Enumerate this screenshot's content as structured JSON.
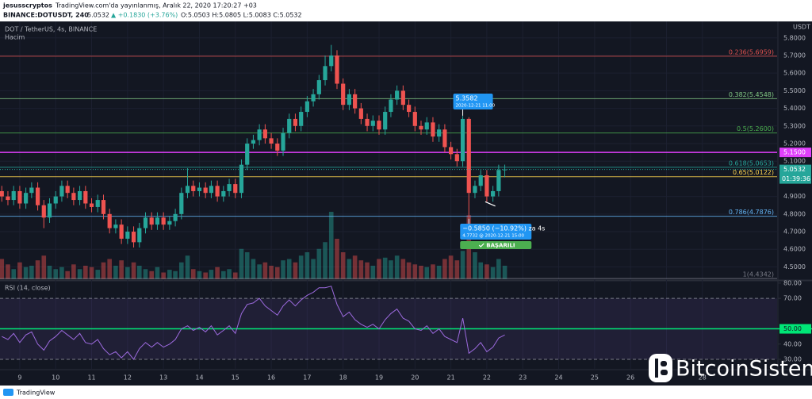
{
  "header": {
    "user": "jesusscryptos",
    "published": "TradingView.com'da yayınlanmış, Aralık 22, 2020 17:20:27 +03",
    "symbol": "BINANCE:DOTUSDT, 240",
    "price": "5.0532",
    "change": "▲ +0.1830 (+3.76%)",
    "ohlc": "O:5.0503 H:5.0805 L:5.0083 C:5.0532"
  },
  "footer": {
    "brand": "TradingView",
    "watermark": "BitcoinSistemi"
  },
  "chart_data": [
    {
      "type": "candlestick",
      "title": "DOT / TetherUS, 4s, BINANCE",
      "subtitle": "Hacim",
      "y_axis_label": "USDT",
      "up_color": "#26a69a",
      "down_color": "#ef5350",
      "x": [
        8.5,
        8.67,
        8.83,
        9,
        9.17,
        9.33,
        9.5,
        9.67,
        9.83,
        10,
        10.17,
        10.33,
        10.5,
        10.67,
        10.83,
        11,
        11.17,
        11.33,
        11.5,
        11.67,
        11.83,
        12,
        12.17,
        12.33,
        12.5,
        12.67,
        12.83,
        13,
        13.17,
        13.33,
        13.5,
        13.67,
        13.83,
        14,
        14.17,
        14.33,
        14.5,
        14.67,
        14.83,
        15,
        15.17,
        15.33,
        15.5,
        15.67,
        15.83,
        16,
        16.17,
        16.33,
        16.5,
        16.67,
        16.83,
        17,
        17.17,
        17.33,
        17.5,
        17.67,
        17.83,
        18,
        18.17,
        18.33,
        18.5,
        18.67,
        18.83,
        19,
        19.17,
        19.33,
        19.5,
        19.67,
        19.83,
        20,
        20.17,
        20.33,
        20.5,
        20.67,
        20.83,
        21,
        21.17,
        21.33,
        21.5,
        21.67,
        21.83,
        22,
        22.17,
        22.33,
        22.5
      ],
      "open": [
        4.93,
        4.9,
        4.88,
        4.93,
        4.86,
        4.92,
        4.95,
        4.85,
        4.78,
        4.86,
        4.9,
        4.96,
        4.92,
        4.88,
        4.93,
        4.86,
        4.84,
        4.88,
        4.8,
        4.72,
        4.74,
        4.66,
        4.7,
        4.64,
        4.72,
        4.78,
        4.74,
        4.78,
        4.74,
        4.76,
        4.8,
        4.92,
        4.96,
        4.93,
        4.95,
        4.92,
        4.96,
        4.9,
        4.93,
        4.97,
        4.92,
        5.08,
        5.2,
        5.22,
        5.28,
        5.23,
        5.2,
        5.16,
        5.26,
        5.34,
        5.3,
        5.38,
        5.44,
        5.48,
        5.56,
        5.64,
        5.7,
        5.54,
        5.42,
        5.48,
        5.4,
        5.34,
        5.3,
        5.33,
        5.28,
        5.38,
        5.45,
        5.5,
        5.42,
        5.38,
        5.3,
        5.28,
        5.32,
        5.24,
        5.28,
        5.18,
        5.14,
        5.1,
        5.34,
        4.92,
        4.96,
        5.02,
        4.9,
        4.93,
        5.0503
      ],
      "high": [
        4.96,
        4.93,
        4.96,
        4.96,
        4.95,
        4.98,
        4.98,
        4.88,
        4.89,
        4.93,
        4.99,
        4.99,
        4.95,
        4.96,
        4.96,
        4.89,
        4.91,
        4.91,
        4.83,
        4.77,
        4.77,
        4.73,
        4.73,
        4.75,
        4.81,
        4.81,
        4.81,
        4.81,
        4.79,
        4.83,
        4.95,
        5.06,
        4.99,
        4.98,
        4.98,
        4.99,
        4.99,
        4.96,
        5.0,
        5.0,
        5.11,
        5.23,
        5.25,
        5.31,
        5.31,
        5.26,
        5.23,
        5.29,
        5.37,
        5.37,
        5.41,
        5.47,
        5.51,
        5.59,
        5.7,
        5.76,
        5.73,
        5.57,
        5.51,
        5.51,
        5.43,
        5.37,
        5.36,
        5.36,
        5.41,
        5.48,
        5.53,
        5.53,
        5.45,
        5.41,
        5.33,
        5.35,
        5.35,
        5.31,
        5.31,
        5.21,
        5.17,
        5.3582,
        5.35,
        4.99,
        5.05,
        5.05,
        4.96,
        5.08,
        5.0805
      ],
      "low": [
        4.87,
        4.85,
        4.85,
        4.83,
        4.83,
        4.89,
        4.82,
        4.72,
        4.75,
        4.83,
        4.87,
        4.89,
        4.85,
        4.85,
        4.83,
        4.81,
        4.81,
        4.77,
        4.69,
        4.69,
        4.63,
        4.63,
        4.61,
        4.61,
        4.69,
        4.71,
        4.71,
        4.71,
        4.71,
        4.73,
        4.77,
        4.89,
        4.9,
        4.9,
        4.89,
        4.89,
        4.87,
        4.87,
        4.9,
        4.89,
        4.89,
        5.05,
        5.17,
        5.19,
        5.2,
        5.17,
        5.13,
        5.13,
        5.23,
        5.27,
        5.27,
        5.35,
        5.41,
        5.45,
        5.53,
        5.61,
        5.51,
        5.39,
        5.39,
        5.37,
        5.31,
        5.27,
        5.27,
        5.25,
        5.25,
        5.35,
        5.42,
        5.39,
        5.35,
        5.27,
        5.25,
        5.25,
        5.21,
        5.21,
        5.15,
        5.11,
        5.07,
        5.07,
        4.7732,
        4.89,
        4.93,
        4.87,
        4.87,
        4.9,
        5.0083
      ],
      "close": [
        4.9,
        4.88,
        4.93,
        4.86,
        4.92,
        4.95,
        4.85,
        4.78,
        4.86,
        4.9,
        4.96,
        4.92,
        4.88,
        4.93,
        4.86,
        4.84,
        4.88,
        4.8,
        4.72,
        4.74,
        4.66,
        4.7,
        4.64,
        4.72,
        4.78,
        4.74,
        4.78,
        4.74,
        4.76,
        4.8,
        4.92,
        4.96,
        4.93,
        4.95,
        4.92,
        4.96,
        4.9,
        4.93,
        4.97,
        4.92,
        5.08,
        5.2,
        5.22,
        5.28,
        5.23,
        5.2,
        5.16,
        5.26,
        5.34,
        5.3,
        5.38,
        5.44,
        5.48,
        5.56,
        5.64,
        5.7,
        5.54,
        5.42,
        5.48,
        5.4,
        5.34,
        5.3,
        5.33,
        5.28,
        5.38,
        5.45,
        5.5,
        5.42,
        5.38,
        5.3,
        5.28,
        5.32,
        5.24,
        5.28,
        5.18,
        5.14,
        5.1,
        5.34,
        4.92,
        4.96,
        5.02,
        4.9,
        4.93,
        5.05,
        5.0532
      ],
      "volume": [
        30,
        22,
        15,
        25,
        18,
        20,
        28,
        35,
        20,
        15,
        18,
        12,
        22,
        15,
        20,
        18,
        14,
        25,
        30,
        20,
        28,
        18,
        25,
        20,
        15,
        12,
        18,
        10,
        14,
        12,
        25,
        35,
        15,
        12,
        10,
        14,
        18,
        12,
        15,
        10,
        45,
        40,
        30,
        22,
        25,
        20,
        18,
        28,
        30,
        25,
        35,
        40,
        30,
        45,
        55,
        100,
        60,
        40,
        30,
        35,
        28,
        25,
        20,
        30,
        32,
        28,
        35,
        30,
        25,
        22,
        20,
        18,
        22,
        20,
        30,
        35,
        28,
        42,
        95,
        40,
        25,
        22,
        18,
        30,
        20
      ],
      "xlim": [
        8.45,
        30.08
      ],
      "ylim": [
        4.43,
        5.88
      ],
      "yticks": [
        {
          "value": 5.8,
          "label": "5.8000"
        },
        {
          "value": 5.7,
          "label": "5.7000"
        },
        {
          "value": 5.6,
          "label": "5.6000"
        },
        {
          "value": 5.5,
          "label": "5.5000"
        },
        {
          "value": 5.4,
          "label": "5.4000"
        },
        {
          "value": 5.3,
          "label": "5.3000"
        },
        {
          "value": 5.2,
          "label": "5.2000"
        },
        {
          "value": 5.1,
          "label": "5.1000"
        },
        {
          "value": 4.9,
          "label": "4.9000"
        },
        {
          "value": 4.8,
          "label": "4.8000"
        },
        {
          "value": 4.7,
          "label": "4.7000"
        },
        {
          "value": 4.6,
          "label": "4.6000"
        },
        {
          "value": 4.5,
          "label": "4.5000"
        }
      ],
      "fib_levels": [
        {
          "label": "0.236(5.6959)",
          "value": 5.6959,
          "color": "#e0524f"
        },
        {
          "label": "0.382(5.4548)",
          "value": 5.4548,
          "color": "#81c784"
        },
        {
          "label": "0.5(5.2600)",
          "value": 5.26,
          "color": "#4caf50"
        },
        {
          "label": "0.618(5.0653)",
          "value": 5.0653,
          "color": "#26a69a"
        },
        {
          "label": "0.65(5.0122)",
          "value": 5.0122,
          "color": "#ffd54f"
        },
        {
          "label": "0.786(4.7876)",
          "value": 4.7876,
          "color": "#64b5f6"
        },
        {
          "label": "1(4.4342)",
          "value": 4.4342,
          "color": "#787b86"
        }
      ],
      "hline": {
        "value": 5.15,
        "label": "5.1500",
        "color": "#e040fb"
      },
      "last_price": {
        "value": 5.0532,
        "label": "5.0532",
        "timer": "01:39:36"
      },
      "annotations": {
        "high_price": "5.3582",
        "high_time": "2020-12-21 11:00",
        "change": "−0.5850 (−10.92%) za 4s",
        "low": "4.7732 @ 2020-12-21 15:00",
        "status": "BAŞARILI"
      }
    },
    {
      "type": "line",
      "title": "RSI (14, close)",
      "color": "#9c6ade",
      "x": [
        8.5,
        8.67,
        8.83,
        9,
        9.17,
        9.33,
        9.5,
        9.67,
        9.83,
        10,
        10.17,
        10.33,
        10.5,
        10.67,
        10.83,
        11,
        11.17,
        11.33,
        11.5,
        11.67,
        11.83,
        12,
        12.17,
        12.33,
        12.5,
        12.67,
        12.83,
        13,
        13.17,
        13.33,
        13.5,
        13.67,
        13.83,
        14,
        14.17,
        14.33,
        14.5,
        14.67,
        14.83,
        15,
        15.17,
        15.33,
        15.5,
        15.67,
        15.83,
        16,
        16.17,
        16.33,
        16.5,
        16.67,
        16.83,
        17,
        17.17,
        17.33,
        17.5,
        17.67,
        17.83,
        18,
        18.17,
        18.33,
        18.5,
        18.67,
        18.83,
        19,
        19.17,
        19.33,
        19.5,
        19.67,
        19.83,
        20,
        20.17,
        20.33,
        20.5,
        20.67,
        20.83,
        21,
        21.17,
        21.33,
        21.5,
        21.67,
        21.83,
        22,
        22.17,
        22.33,
        22.5
      ],
      "values": [
        45,
        43,
        47,
        41,
        46,
        48,
        40,
        36,
        42,
        45,
        49,
        46,
        43,
        47,
        41,
        40,
        43,
        37,
        33,
        35,
        31,
        35,
        30,
        37,
        41,
        38,
        41,
        38,
        40,
        43,
        50,
        52,
        49,
        51,
        48,
        52,
        46,
        49,
        52,
        47,
        60,
        66,
        67,
        70,
        65,
        62,
        59,
        65,
        69,
        65,
        69,
        72,
        74,
        77,
        77,
        78,
        66,
        58,
        61,
        56,
        53,
        51,
        53,
        50,
        56,
        60,
        63,
        57,
        55,
        50,
        49,
        52,
        47,
        50,
        45,
        43,
        41,
        57,
        34,
        37,
        41,
        35,
        38,
        44,
        46
      ],
      "xlim": [
        8.45,
        30.08
      ],
      "ylim": [
        25.3,
        81
      ],
      "xticks": [
        9,
        10,
        11,
        12,
        13,
        14,
        15,
        16,
        17,
        18,
        19,
        20,
        21,
        22,
        23,
        24,
        25,
        26,
        27,
        28
      ],
      "yticks": [
        {
          "value": 80,
          "label": "80.00"
        },
        {
          "value": 70,
          "label": "70.00"
        },
        {
          "value": 50,
          "label": "50.00"
        },
        {
          "value": 40,
          "label": "40.00"
        },
        {
          "value": 30,
          "label": "30.00"
        }
      ],
      "bands": [
        70,
        30
      ],
      "midline": {
        "value": 50,
        "color": "#00e676"
      }
    }
  ]
}
